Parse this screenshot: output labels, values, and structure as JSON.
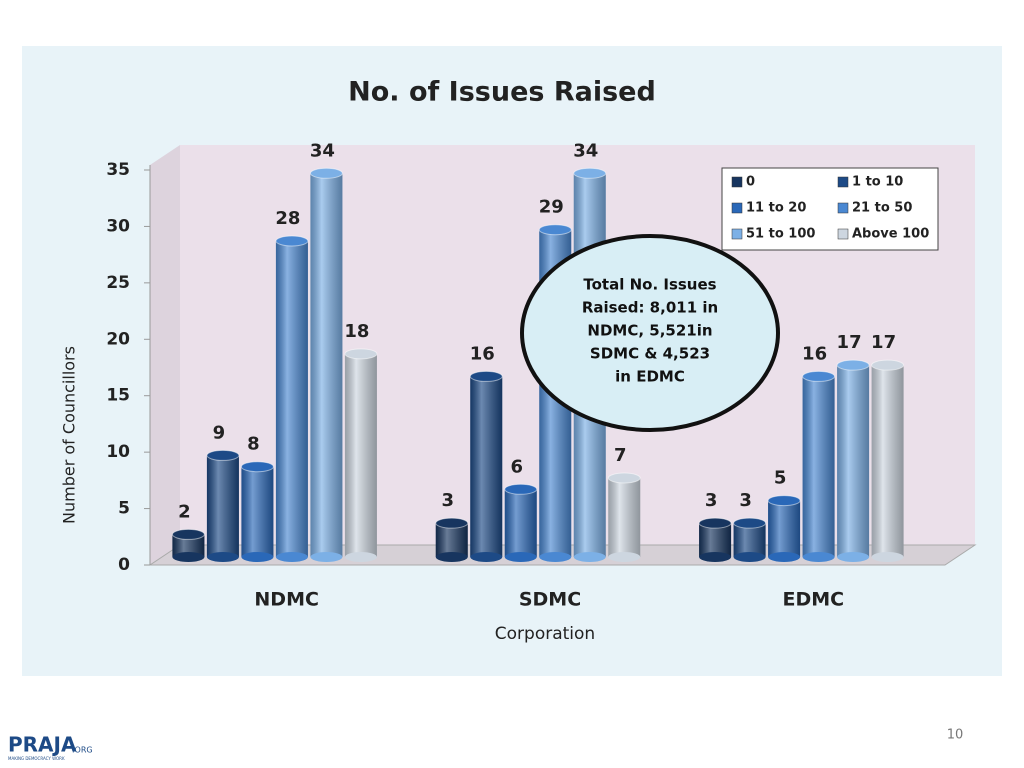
{
  "chart_data": {
    "type": "bar3d",
    "title": "No. of Issues Raised",
    "x_label": "Corporation",
    "y_label": "Number of Councillors",
    "categories": [
      "NDMC",
      "SDMC",
      "EDMC"
    ],
    "series": [
      {
        "name": "0",
        "color": "#17355f",
        "values": [
          2,
          3,
          3
        ]
      },
      {
        "name": "1 to 10",
        "color": "#1d4a86",
        "values": [
          9,
          16,
          3
        ]
      },
      {
        "name": "11 to 20",
        "color": "#2a68b8",
        "values": [
          8,
          6,
          5
        ]
      },
      {
        "name": "21 to 50",
        "color": "#4a88d2",
        "values": [
          28,
          29,
          16
        ]
      },
      {
        "name": "51 to 100",
        "color": "#7cb0e6",
        "values": [
          34,
          34,
          17
        ]
      },
      {
        "name": "Above 100",
        "color": "#cdd6e0",
        "values": [
          18,
          7,
          17
        ]
      }
    ],
    "ylim": [
      0,
      35
    ],
    "yticks": [
      0,
      5,
      10,
      15,
      20,
      25,
      30,
      35
    ],
    "grid": false,
    "legend": "top-right",
    "annotation": [
      "Total No. Issues",
      "Raised: 8,011 in",
      "NDMC, 5,521in",
      "SDMC & 4,523",
      "in EDMC"
    ]
  },
  "slide": {
    "page_number": "10",
    "logo": "PRAJA",
    "logo_suffix": ".ORG",
    "logo_tagline": "MAKING DEMOCRACY WORK"
  }
}
